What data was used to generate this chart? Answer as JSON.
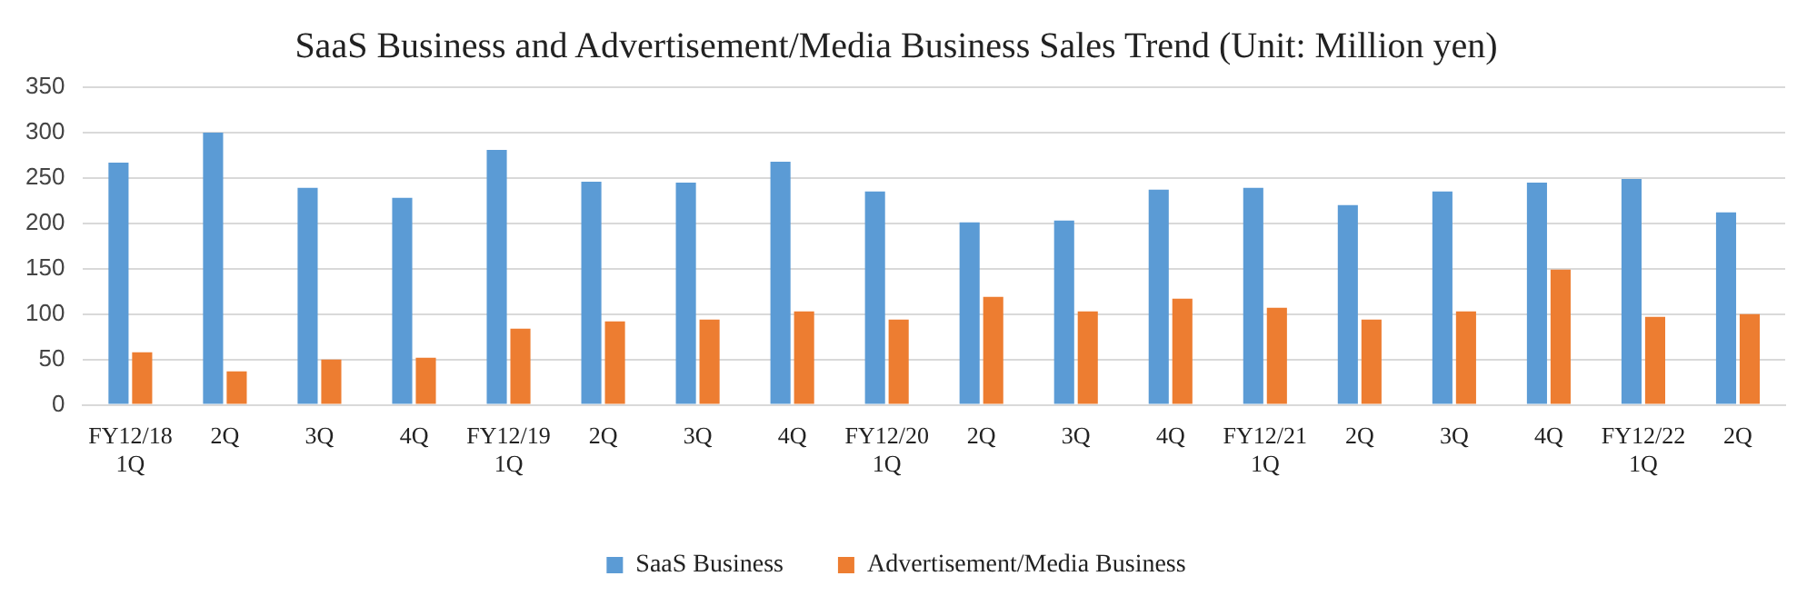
{
  "chart_data": {
    "type": "bar",
    "title": "SaaS Business and Advertisement/Media Business Sales Trend (Unit: Million yen)",
    "categories": [
      "FY12/18\n1Q",
      "2Q",
      "3Q",
      "4Q",
      "FY12/19\n1Q",
      "2Q",
      "3Q",
      "4Q",
      "FY12/20\n1Q",
      "2Q",
      "3Q",
      "4Q",
      "FY12/21\n1Q",
      "2Q",
      "3Q",
      "4Q",
      "FY12/22\n1Q",
      "2Q"
    ],
    "series": [
      {
        "name": "SaaS Business",
        "color": "#5b9bd5",
        "values": [
          267,
          300,
          239,
          228,
          281,
          246,
          245,
          268,
          235,
          201,
          203,
          237,
          239,
          220,
          235,
          245,
          249,
          212
        ]
      },
      {
        "name": "Advertisement/Media Business",
        "color": "#ed7d31",
        "values": [
          58,
          37,
          50,
          52,
          84,
          92,
          94,
          103,
          94,
          119,
          103,
          117,
          107,
          94,
          103,
          149,
          97,
          100
        ]
      }
    ],
    "ylim": [
      0,
      350
    ],
    "yticks": [
      0,
      50,
      100,
      150,
      200,
      250,
      300,
      350
    ],
    "grid": "y",
    "legend": "bottom"
  }
}
